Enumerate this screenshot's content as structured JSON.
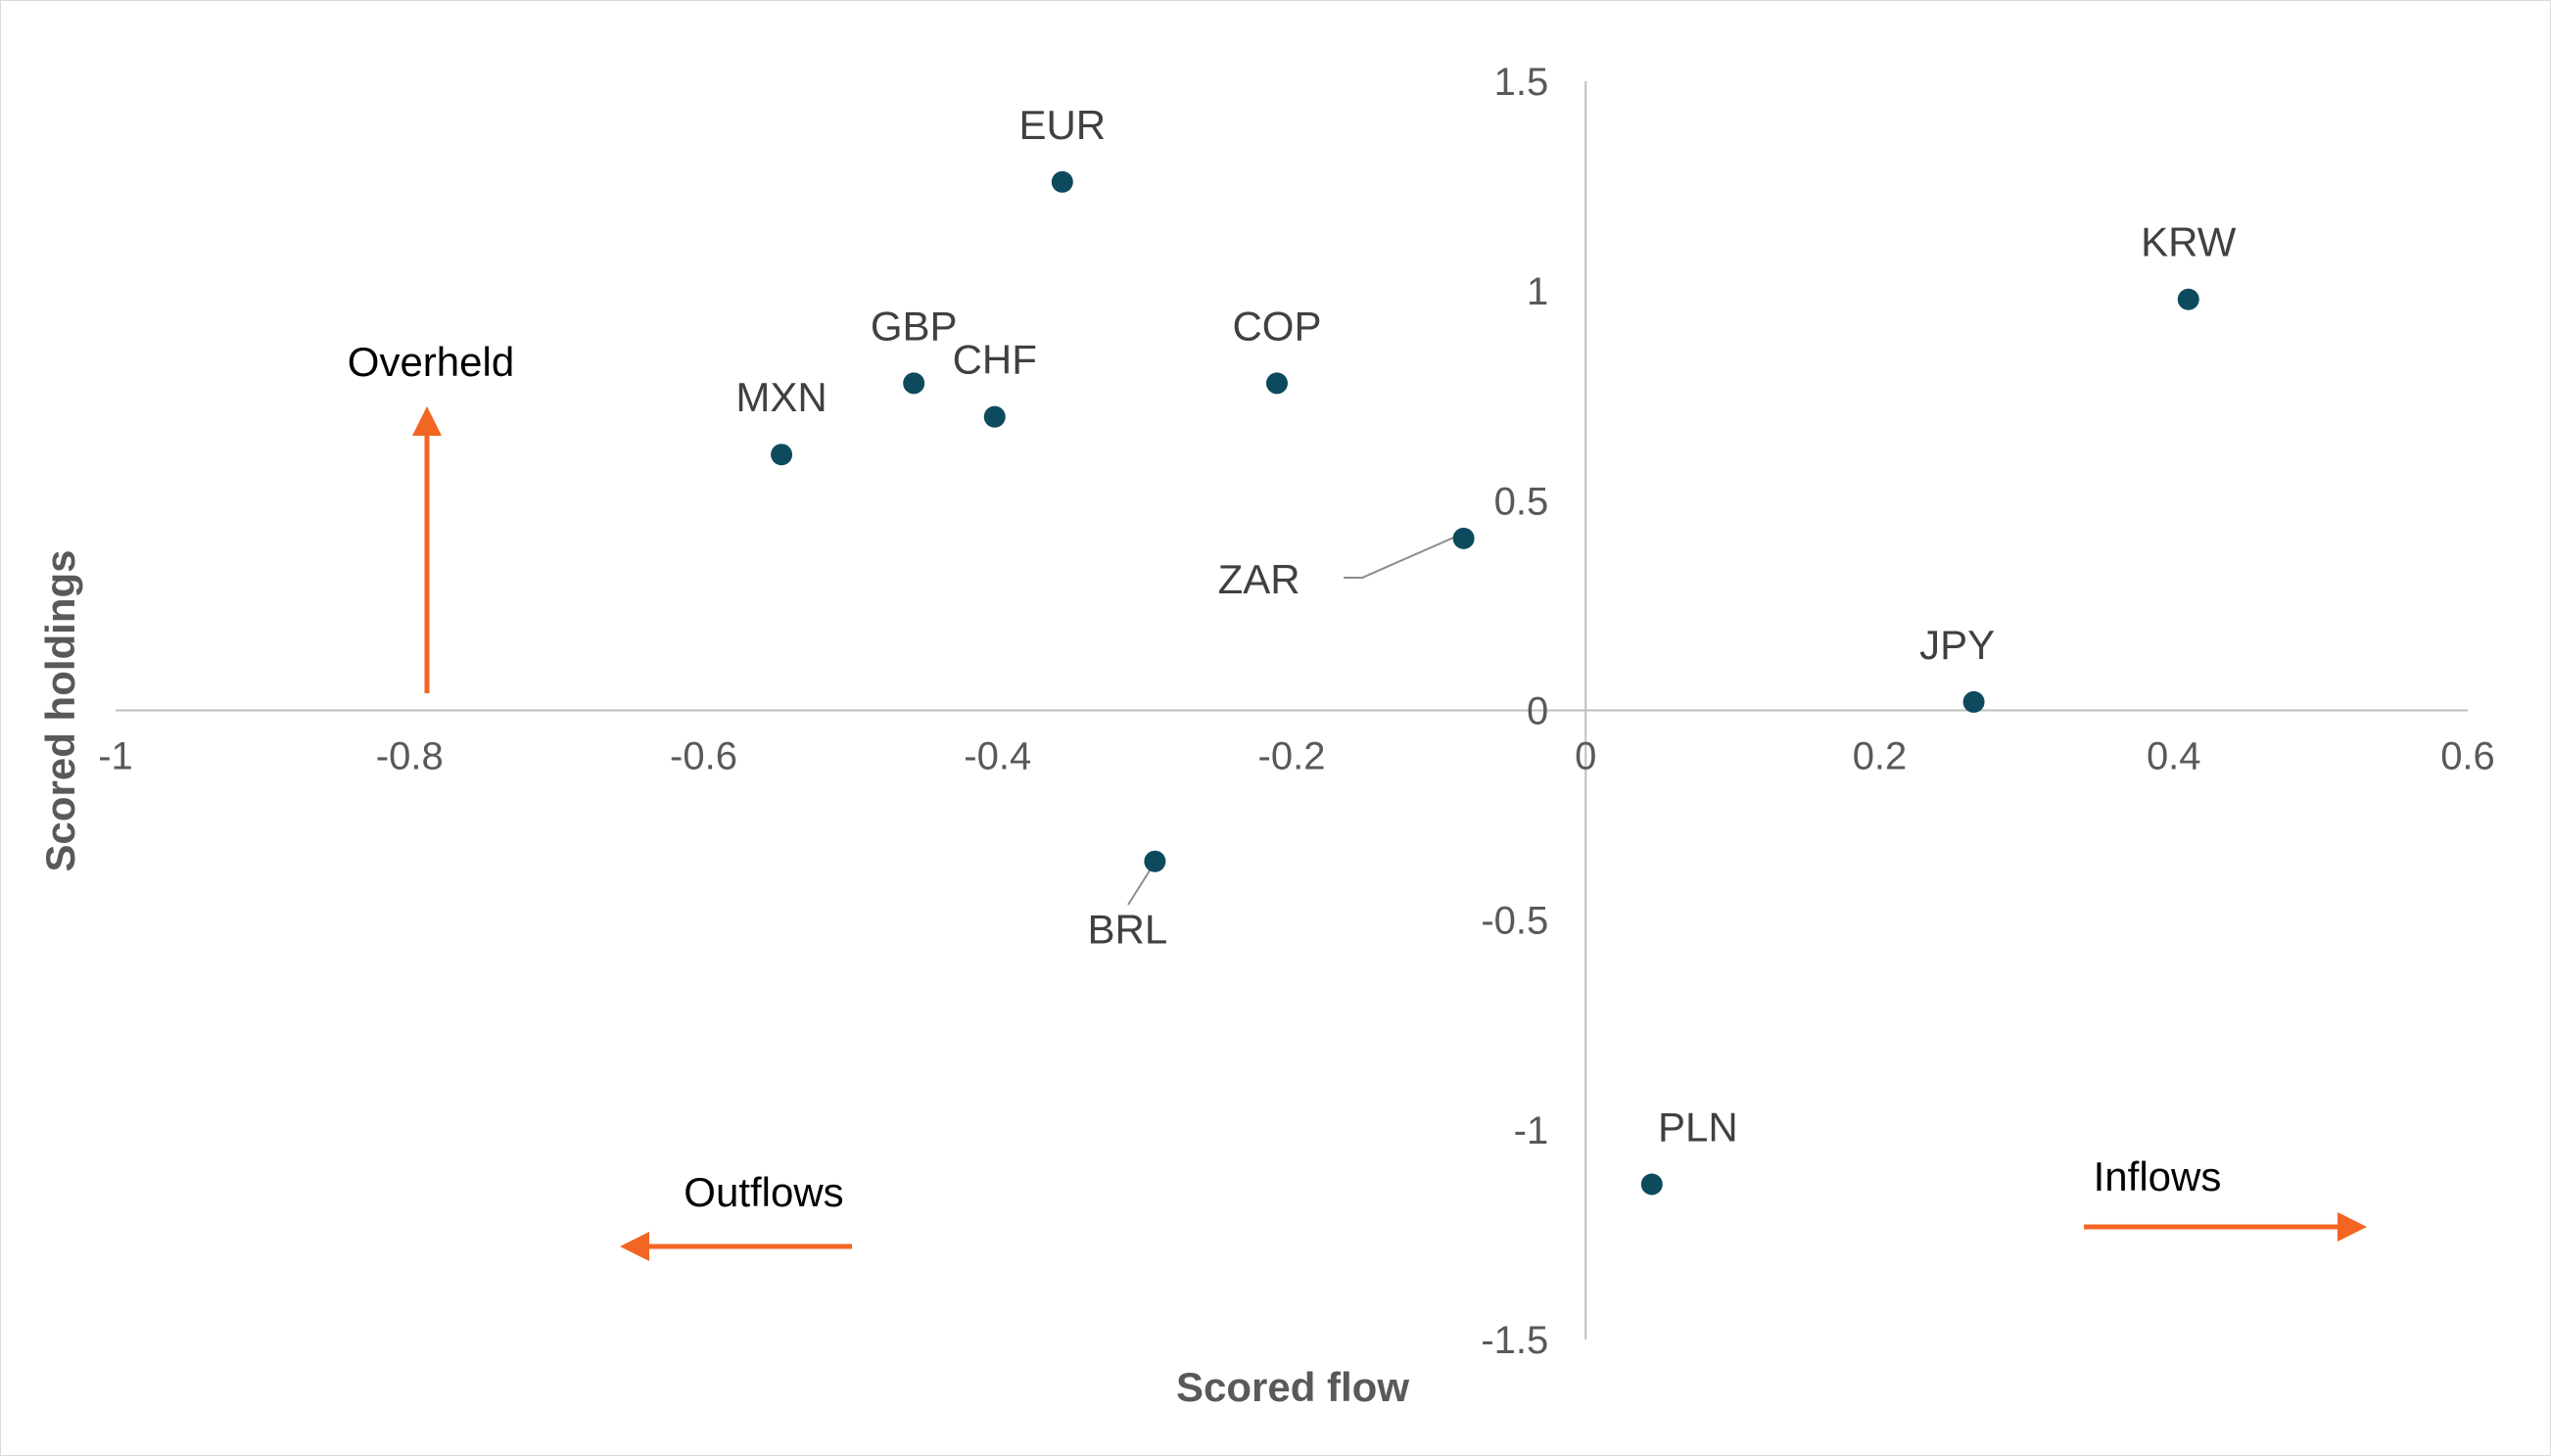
{
  "chart_data": {
    "type": "scatter",
    "title": "",
    "xlabel": "Scored flow",
    "ylabel": "Scored holdings",
    "xlim": [
      -1,
      0.6
    ],
    "ylim": [
      -1.5,
      1.5
    ],
    "xticks": [
      "-1",
      "-0.8",
      "-0.6",
      "-0.4",
      "-0.2",
      "0",
      "0.2",
      "0.4",
      "0.6"
    ],
    "yticks": [
      "1.5",
      "1",
      "0.5",
      "0",
      "-0.5",
      "-1",
      "-1.5"
    ],
    "grid": false,
    "legend": "none",
    "points": [
      {
        "label": "EUR",
        "x": -0.356,
        "y": 1.26
      },
      {
        "label": "KRW",
        "x": 0.41,
        "y": 0.98
      },
      {
        "label": "GBP",
        "x": -0.457,
        "y": 0.78
      },
      {
        "label": "CHF",
        "x": -0.402,
        "y": 0.7
      },
      {
        "label": "COP",
        "x": -0.21,
        "y": 0.78
      },
      {
        "label": "MXN",
        "x": -0.547,
        "y": 0.61
      },
      {
        "label": "ZAR",
        "x": -0.083,
        "y": 0.41
      },
      {
        "label": "JPY",
        "x": 0.264,
        "y": 0.02
      },
      {
        "label": "BRL",
        "x": -0.293,
        "y": -0.36
      },
      {
        "label": "PLN",
        "x": 0.045,
        "y": -1.13
      }
    ],
    "annotations": {
      "overheld": "Overheld",
      "outflows": "Outflows",
      "inflows": "Inflows"
    },
    "colors": {
      "marker": "#0e4a5e",
      "arrow": "#f26522",
      "axis": "#bfbfbf",
      "leader": "#8c8c8c"
    }
  }
}
